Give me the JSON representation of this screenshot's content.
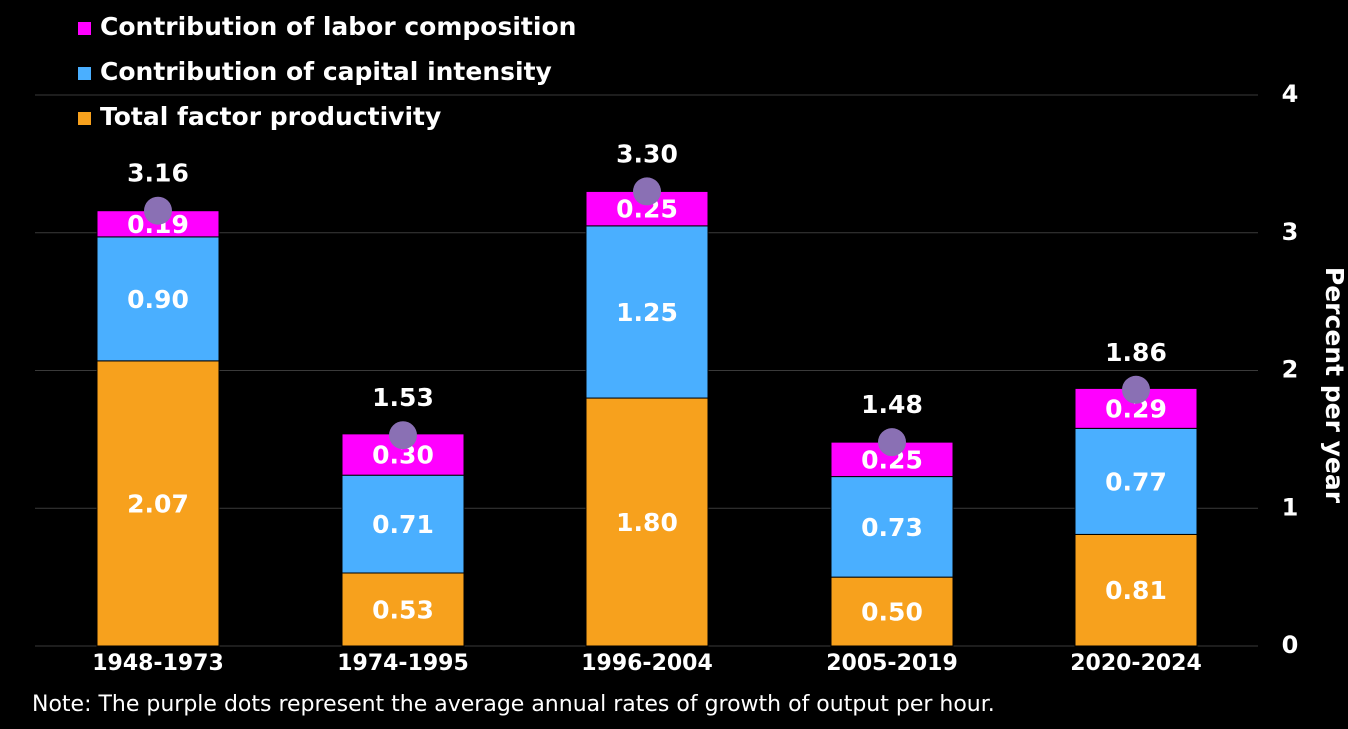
{
  "chart_data": {
    "type": "stacked-bar",
    "categories": [
      "1948-1973",
      "1974-1995",
      "1996-2004",
      "2005-2019",
      "2020-2024"
    ],
    "series": [
      {
        "name": "Total factor productivity",
        "color": "#f7a11d",
        "values": [
          2.07,
          0.53,
          1.8,
          0.5,
          0.81
        ],
        "value_labels": [
          "2.07",
          "0.53",
          "1.80",
          "0.50",
          "0.81"
        ]
      },
      {
        "name": "Contribution of capital intensity",
        "color": "#4aafff",
        "values": [
          0.9,
          0.71,
          1.25,
          0.73,
          0.77
        ],
        "value_labels": [
          "0.90",
          "0.71",
          "1.25",
          "0.73",
          "0.77"
        ]
      },
      {
        "name": "Contribution of labor composition",
        "color": "#ff00ff",
        "values": [
          0.19,
          0.3,
          0.25,
          0.25,
          0.29
        ],
        "value_labels": [
          "0.19",
          "0.30",
          "0.25",
          "0.25",
          "0.29"
        ]
      }
    ],
    "totals": {
      "color": "#8a70b4",
      "values": [
        3.16,
        1.53,
        3.3,
        1.48,
        1.86
      ],
      "value_labels": [
        "3.16",
        "1.53",
        "3.30",
        "1.48",
        "1.86"
      ]
    },
    "y_axis_label": "Percent per year",
    "ylim": [
      0,
      4
    ],
    "yticks": [
      0,
      1,
      2,
      3,
      4
    ],
    "grid": true,
    "note": "Note: The purple dots represent the average annual rates of growth of output per hour."
  }
}
